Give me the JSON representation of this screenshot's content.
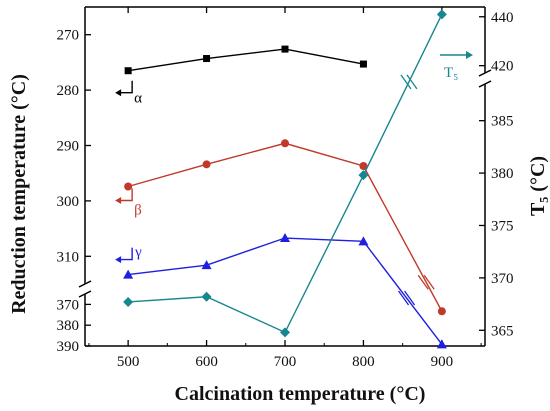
{
  "chart_data": {
    "type": "line",
    "xlabel": "Calcination temperature (°C)",
    "ylabel_left": "Reduction temperature (°C)",
    "ylabel_right": "T₅ (°C)",
    "x_ticks": [
      "500",
      "600",
      "700",
      "800",
      "900"
    ],
    "xlim": [
      445,
      955
    ],
    "left_axis": {
      "upper_range": [
        265,
        315
      ],
      "upper_ticks": [
        "270",
        "280",
        "290",
        "300",
        "310"
      ],
      "lower_range": [
        365,
        390
      ],
      "lower_ticks": [
        "370",
        "380",
        "390"
      ],
      "inverted": true,
      "broken": true
    },
    "right_axis": {
      "upper_range": [
        417,
        444
      ],
      "upper_ticks": [
        "420",
        "440"
      ],
      "lower_range": [
        363.5,
        388.5
      ],
      "lower_ticks": [
        "365",
        "370",
        "375",
        "380",
        "385"
      ],
      "broken": true
    },
    "series": [
      {
        "name": "α",
        "axis": "left",
        "color": "#000000",
        "marker": "square",
        "x": [
          500,
          600,
          700,
          800
        ],
        "y": [
          276.5,
          274.3,
          272.6,
          275.3
        ]
      },
      {
        "name": "β",
        "axis": "left",
        "color": "#c0392b",
        "marker": "circle",
        "x": [
          500,
          600,
          700,
          800,
          900
        ],
        "y": [
          297.4,
          293.4,
          289.6,
          293.7,
          373.3
        ]
      },
      {
        "name": "γ",
        "axis": "left",
        "color": "#1f1fe0",
        "marker": "triangle",
        "x": [
          500,
          600,
          700,
          800,
          900
        ],
        "y": [
          313.3,
          311.6,
          306.7,
          307.3,
          389.2
        ]
      },
      {
        "name": "T₅",
        "axis": "right",
        "color": "#17878f",
        "marker": "diamond",
        "x": [
          500,
          600,
          700,
          800,
          900
        ],
        "y": [
          367.7,
          368.2,
          364.8,
          379.8,
          441.0
        ]
      }
    ],
    "annotations": [
      {
        "text": "α",
        "series": "α",
        "direction": "left"
      },
      {
        "text": "β",
        "series": "β",
        "direction": "left"
      },
      {
        "text": "γ",
        "series": "γ",
        "direction": "left"
      },
      {
        "text": "T₅",
        "series": "T₅",
        "direction": "right"
      }
    ],
    "grid": false
  }
}
